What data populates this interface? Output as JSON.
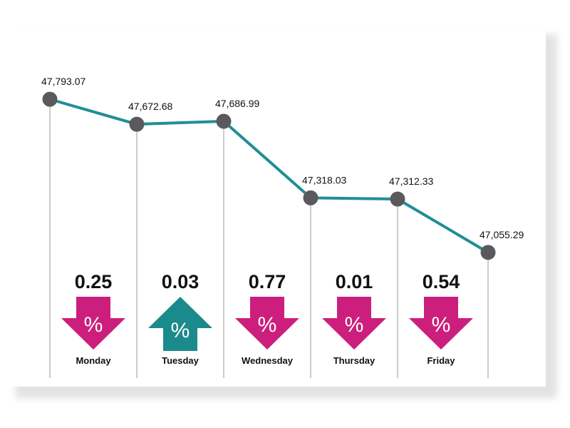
{
  "chart_data": {
    "type": "line",
    "categories": [
      "Monday",
      "Tuesday",
      "Wednesday",
      "Thursday",
      "Friday"
    ],
    "points": [
      {
        "value": 47793.07,
        "label": "47,793.07"
      },
      {
        "value": 47672.68,
        "label": "47,672.68"
      },
      {
        "value": 47686.99,
        "label": "47,686.99"
      },
      {
        "value": 47318.03,
        "label": "47,318.03"
      },
      {
        "value": 47312.33,
        "label": "47,312.33"
      },
      {
        "value": 47055.29,
        "label": "47,055.29"
      }
    ],
    "changes": [
      {
        "day": "Monday",
        "percent": "0.25",
        "direction": "down"
      },
      {
        "day": "Tuesday",
        "percent": "0.03",
        "direction": "up"
      },
      {
        "day": "Wednesday",
        "percent": "0.77",
        "direction": "down"
      },
      {
        "day": "Thursday",
        "percent": "0.01",
        "direction": "down"
      },
      {
        "day": "Friday",
        "percent": "0.54",
        "direction": "down"
      }
    ],
    "percent_symbol": "%",
    "ylim": [
      46450,
      47900
    ],
    "title": "",
    "xlabel": "",
    "ylabel": "",
    "grid": false,
    "legend": "none",
    "colors": {
      "line": "#1f8f96",
      "marker": "#5a5a5c",
      "vline": "#9a9a9a",
      "down_arrow": "#cc1f7d",
      "up_arrow": "#1b8a8c"
    }
  }
}
